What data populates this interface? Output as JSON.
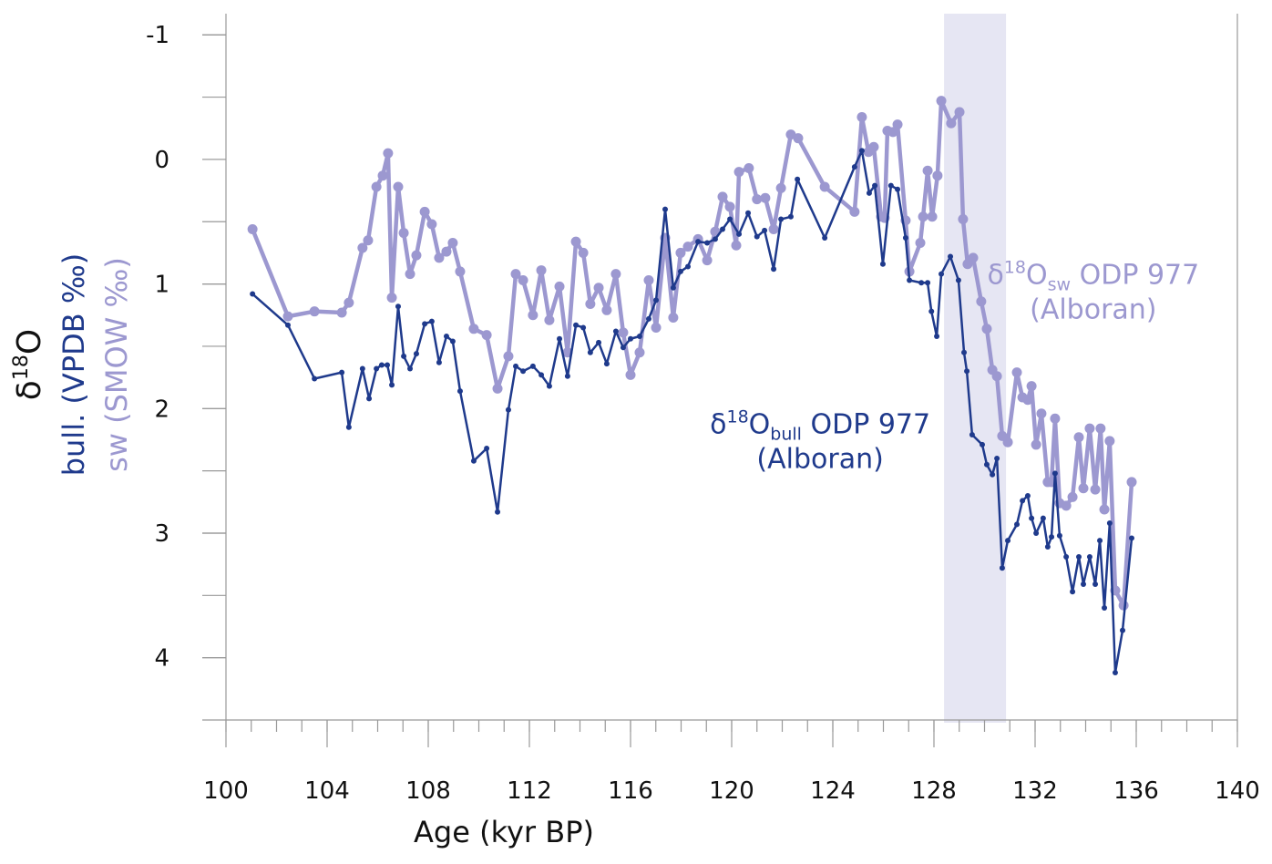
{
  "chart_data": {
    "type": "line",
    "xlabel": "Age (kyr BP)",
    "ylabel": {
      "main": "δ",
      "sup": "18",
      "end": "O"
    },
    "ylabel_lines": [
      {
        "text": "bull. (VPDB ‰)",
        "color": "#1f3a8c"
      },
      {
        "text": "sw (SMOW ‰)",
        "color": "#9c98d0"
      }
    ],
    "xlim": [
      100,
      140
    ],
    "xticks": [
      100,
      104,
      108,
      112,
      116,
      120,
      124,
      128,
      132,
      136,
      140
    ],
    "x_minor_step": 1,
    "ylim": [
      4.5,
      -1.17
    ],
    "yticks": [
      -1,
      0,
      1,
      2,
      3,
      4
    ],
    "y_minor_step": 0.5,
    "inverted_y": true,
    "shaded_span": [
      128.4,
      130.85
    ],
    "shade_color": "#e6e6f3",
    "annotations": [
      {
        "parts": [
          "δ",
          "18",
          "O",
          "bull",
          " ODP 977"
        ],
        "line2": "(Alboran)",
        "x": 123.5,
        "y": 2.2,
        "color": "#1f3a8c"
      },
      {
        "parts": [
          "δ",
          "18",
          "O",
          "sw",
          " ODP 977"
        ],
        "line2": "(Alboran)",
        "x": 134.3,
        "y": 1.0,
        "color": "#9c98d0"
      }
    ],
    "series": [
      {
        "name": "bull",
        "color": "#1f3a8c",
        "x": [
          101.05,
          102.45,
          103.5,
          104.58,
          104.86,
          105.4,
          105.66,
          105.95,
          106.16,
          106.38,
          106.56,
          106.81,
          107.03,
          107.28,
          107.53,
          107.86,
          108.14,
          108.43,
          108.72,
          108.97,
          109.26,
          109.8,
          110.31,
          110.74,
          111.17,
          111.46,
          111.75,
          112.14,
          112.47,
          112.79,
          113.19,
          113.51,
          113.84,
          114.13,
          114.41,
          114.74,
          115.06,
          115.42,
          115.71,
          116.0,
          116.36,
          116.72,
          117.01,
          117.37,
          117.69,
          117.98,
          118.27,
          118.67,
          119.03,
          119.35,
          119.64,
          119.93,
          120.29,
          120.65,
          121.0,
          121.3,
          121.66,
          121.95,
          122.34,
          122.6,
          123.68,
          124.86,
          125.15,
          125.44,
          125.66,
          125.98,
          126.3,
          126.56,
          126.88,
          127.03,
          127.5,
          127.75,
          127.9,
          128.11,
          128.29,
          128.65,
          128.97,
          129.19,
          129.3,
          129.51,
          129.91,
          130.09,
          130.31,
          130.49,
          130.7,
          130.92,
          131.28,
          131.5,
          131.71,
          131.86,
          132.04,
          132.32,
          132.5,
          132.65,
          132.79,
          132.97,
          133.23,
          133.48,
          133.73,
          133.91,
          134.16,
          134.38,
          134.56,
          134.74,
          134.95,
          135.17,
          135.46,
          135.82
        ],
        "values": [
          1.08,
          1.33,
          1.76,
          1.71,
          2.15,
          1.68,
          1.92,
          1.68,
          1.65,
          1.65,
          1.81,
          1.18,
          1.58,
          1.68,
          1.56,
          1.32,
          1.3,
          1.63,
          1.42,
          1.46,
          1.86,
          2.42,
          2.32,
          2.83,
          2.01,
          1.66,
          1.7,
          1.66,
          1.73,
          1.82,
          1.44,
          1.74,
          1.33,
          1.35,
          1.55,
          1.47,
          1.64,
          1.38,
          1.51,
          1.44,
          1.42,
          1.28,
          1.13,
          0.4,
          1.03,
          0.9,
          0.86,
          0.66,
          0.67,
          0.64,
          0.56,
          0.48,
          0.6,
          0.43,
          0.62,
          0.57,
          0.88,
          0.48,
          0.46,
          0.16,
          0.63,
          0.06,
          -0.07,
          0.27,
          0.21,
          0.84,
          0.21,
          0.24,
          0.63,
          0.97,
          0.99,
          0.99,
          1.22,
          1.42,
          0.92,
          0.78,
          0.97,
          1.55,
          1.7,
          2.21,
          2.29,
          2.45,
          2.53,
          2.4,
          3.28,
          3.06,
          2.93,
          2.74,
          2.7,
          2.88,
          3.0,
          2.88,
          3.11,
          3.03,
          2.52,
          3.02,
          3.19,
          3.47,
          3.19,
          3.41,
          3.19,
          3.41,
          3.06,
          3.6,
          2.92,
          4.12,
          3.78,
          3.04
        ]
      },
      {
        "name": "sw",
        "color": "#9c98d0",
        "x": [
          101.05,
          102.45,
          103.5,
          104.58,
          104.86,
          105.4,
          105.62,
          105.95,
          106.2,
          106.41,
          106.56,
          106.81,
          107.03,
          107.28,
          107.53,
          107.86,
          108.14,
          108.43,
          108.72,
          108.97,
          109.26,
          109.8,
          110.31,
          110.74,
          111.17,
          111.46,
          111.75,
          112.14,
          112.47,
          112.79,
          113.19,
          113.51,
          113.84,
          114.13,
          114.41,
          114.74,
          115.06,
          115.42,
          115.71,
          116.0,
          116.36,
          116.72,
          117.01,
          117.37,
          117.69,
          117.98,
          118.27,
          118.67,
          119.03,
          119.35,
          119.64,
          119.93,
          120.18,
          120.29,
          120.68,
          121.0,
          121.33,
          121.66,
          121.95,
          122.34,
          122.63,
          123.68,
          124.86,
          125.15,
          125.41,
          125.62,
          125.91,
          126.05,
          126.16,
          126.38,
          126.56,
          126.88,
          127.03,
          127.46,
          127.57,
          127.75,
          127.93,
          128.14,
          128.29,
          128.68,
          129.01,
          129.15,
          129.33,
          129.55,
          129.87,
          130.09,
          130.31,
          130.49,
          130.7,
          130.92,
          131.28,
          131.5,
          131.71,
          131.86,
          132.04,
          132.25,
          132.5,
          132.65,
          132.79,
          132.97,
          133.23,
          133.48,
          133.73,
          133.91,
          134.16,
          134.38,
          134.59,
          134.74,
          134.95,
          135.17,
          135.5,
          135.82
        ],
        "values": [
          0.56,
          1.26,
          1.22,
          1.23,
          1.15,
          0.71,
          0.65,
          0.22,
          0.13,
          -0.05,
          1.11,
          0.22,
          0.59,
          0.92,
          0.77,
          0.42,
          0.52,
          0.79,
          0.74,
          0.67,
          0.9,
          1.36,
          1.41,
          1.84,
          1.58,
          0.92,
          0.97,
          1.25,
          0.89,
          1.29,
          1.02,
          1.55,
          0.66,
          0.75,
          1.16,
          1.03,
          1.21,
          0.92,
          1.39,
          1.73,
          1.55,
          0.97,
          1.35,
          0.63,
          1.27,
          0.75,
          0.7,
          0.64,
          0.81,
          0.58,
          0.3,
          0.38,
          0.69,
          0.1,
          0.07,
          0.32,
          0.31,
          0.56,
          0.23,
          -0.2,
          -0.17,
          0.22,
          0.42,
          -0.34,
          -0.06,
          -0.1,
          0.46,
          0.47,
          -0.23,
          -0.22,
          -0.28,
          0.49,
          0.9,
          0.67,
          0.46,
          0.09,
          0.46,
          0.13,
          -0.47,
          -0.29,
          -0.38,
          0.48,
          0.84,
          0.79,
          1.14,
          1.36,
          1.69,
          1.74,
          2.22,
          2.27,
          1.71,
          1.91,
          1.93,
          1.82,
          2.29,
          2.04,
          2.59,
          2.59,
          2.08,
          2.76,
          2.78,
          2.71,
          2.23,
          2.64,
          2.16,
          2.65,
          2.16,
          2.81,
          2.26,
          3.46,
          3.58,
          2.59
        ]
      }
    ]
  }
}
